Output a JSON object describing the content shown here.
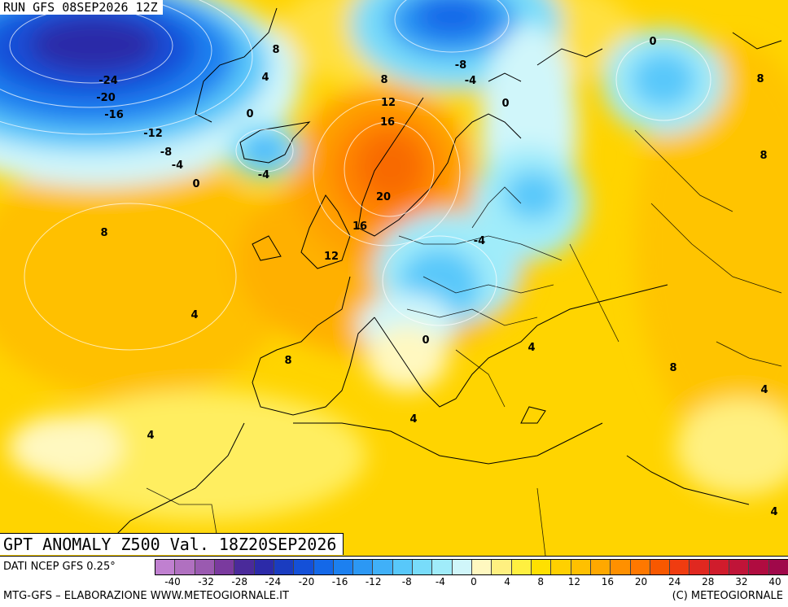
{
  "header": {
    "run": "RUN GFS 08SEP2026 12Z"
  },
  "title": "GPT ANOMALY Z500 Val. 18Z20SEP2026",
  "footer": {
    "dati": "DATI NCEP GFS 0.25°",
    "credit": "MTG-GFS – ELABORAZIONE WWW.METEOGIORNALE.IT",
    "copyright": "(C) METEOGIORNALE"
  },
  "legend": {
    "colors": [
      "#c080d0",
      "#b070c0",
      "#9a5ab0",
      "#7a3a9e",
      "#4a2a9a",
      "#2c2aa8",
      "#1a3cc0",
      "#1450d8",
      "#1468e8",
      "#1c80f0",
      "#2c98f4",
      "#40b0f8",
      "#58c8fa",
      "#78dcfa",
      "#a0ecfa",
      "#d0f6fa",
      "#fff8c0",
      "#fff080",
      "#fff040",
      "#ffe000",
      "#ffd000",
      "#ffc000",
      "#ffa800",
      "#ff9000",
      "#ff7800",
      "#f85800",
      "#f03c10",
      "#e02820",
      "#d01c2c",
      "#c01438",
      "#b00c40",
      "#a0084a"
    ],
    "ticks": [
      "-40",
      "-32",
      "-28",
      "-24",
      "-20",
      "-16",
      "-12",
      "-8",
      "-4",
      "0",
      "4",
      "8",
      "12",
      "16",
      "20",
      "24",
      "28",
      "32",
      "40"
    ]
  },
  "contour_labels": [
    "-24",
    "-20",
    "-16",
    "-12",
    "-8",
    "-4",
    "0",
    "8",
    "4",
    "0",
    "-4",
    "-8",
    "-4",
    "0",
    "8",
    "12",
    "16",
    "20",
    "16",
    "12",
    "8",
    "4",
    "8",
    "4",
    "-4",
    "0",
    "4",
    "8",
    "8",
    "8",
    "4",
    "4",
    "0",
    "4"
  ]
}
